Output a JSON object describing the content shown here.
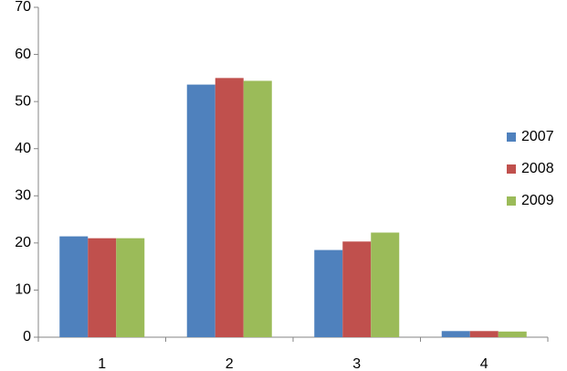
{
  "chart_data": {
    "type": "bar",
    "categories": [
      "1",
      "2",
      "3",
      "4"
    ],
    "series": [
      {
        "name": "2007",
        "color": "#4f81bd",
        "values": [
          21.4,
          53.6,
          18.5,
          1.3
        ]
      },
      {
        "name": "2008",
        "color": "#c0504d",
        "values": [
          21.0,
          55.0,
          20.3,
          1.3
        ]
      },
      {
        "name": "2009",
        "color": "#9bbb59",
        "values": [
          21.0,
          54.4,
          22.2,
          1.2
        ]
      }
    ],
    "ylim": [
      0,
      70
    ],
    "yticks": [
      0,
      10,
      20,
      30,
      40,
      50,
      60,
      70
    ],
    "grid": false,
    "legend": "right"
  }
}
